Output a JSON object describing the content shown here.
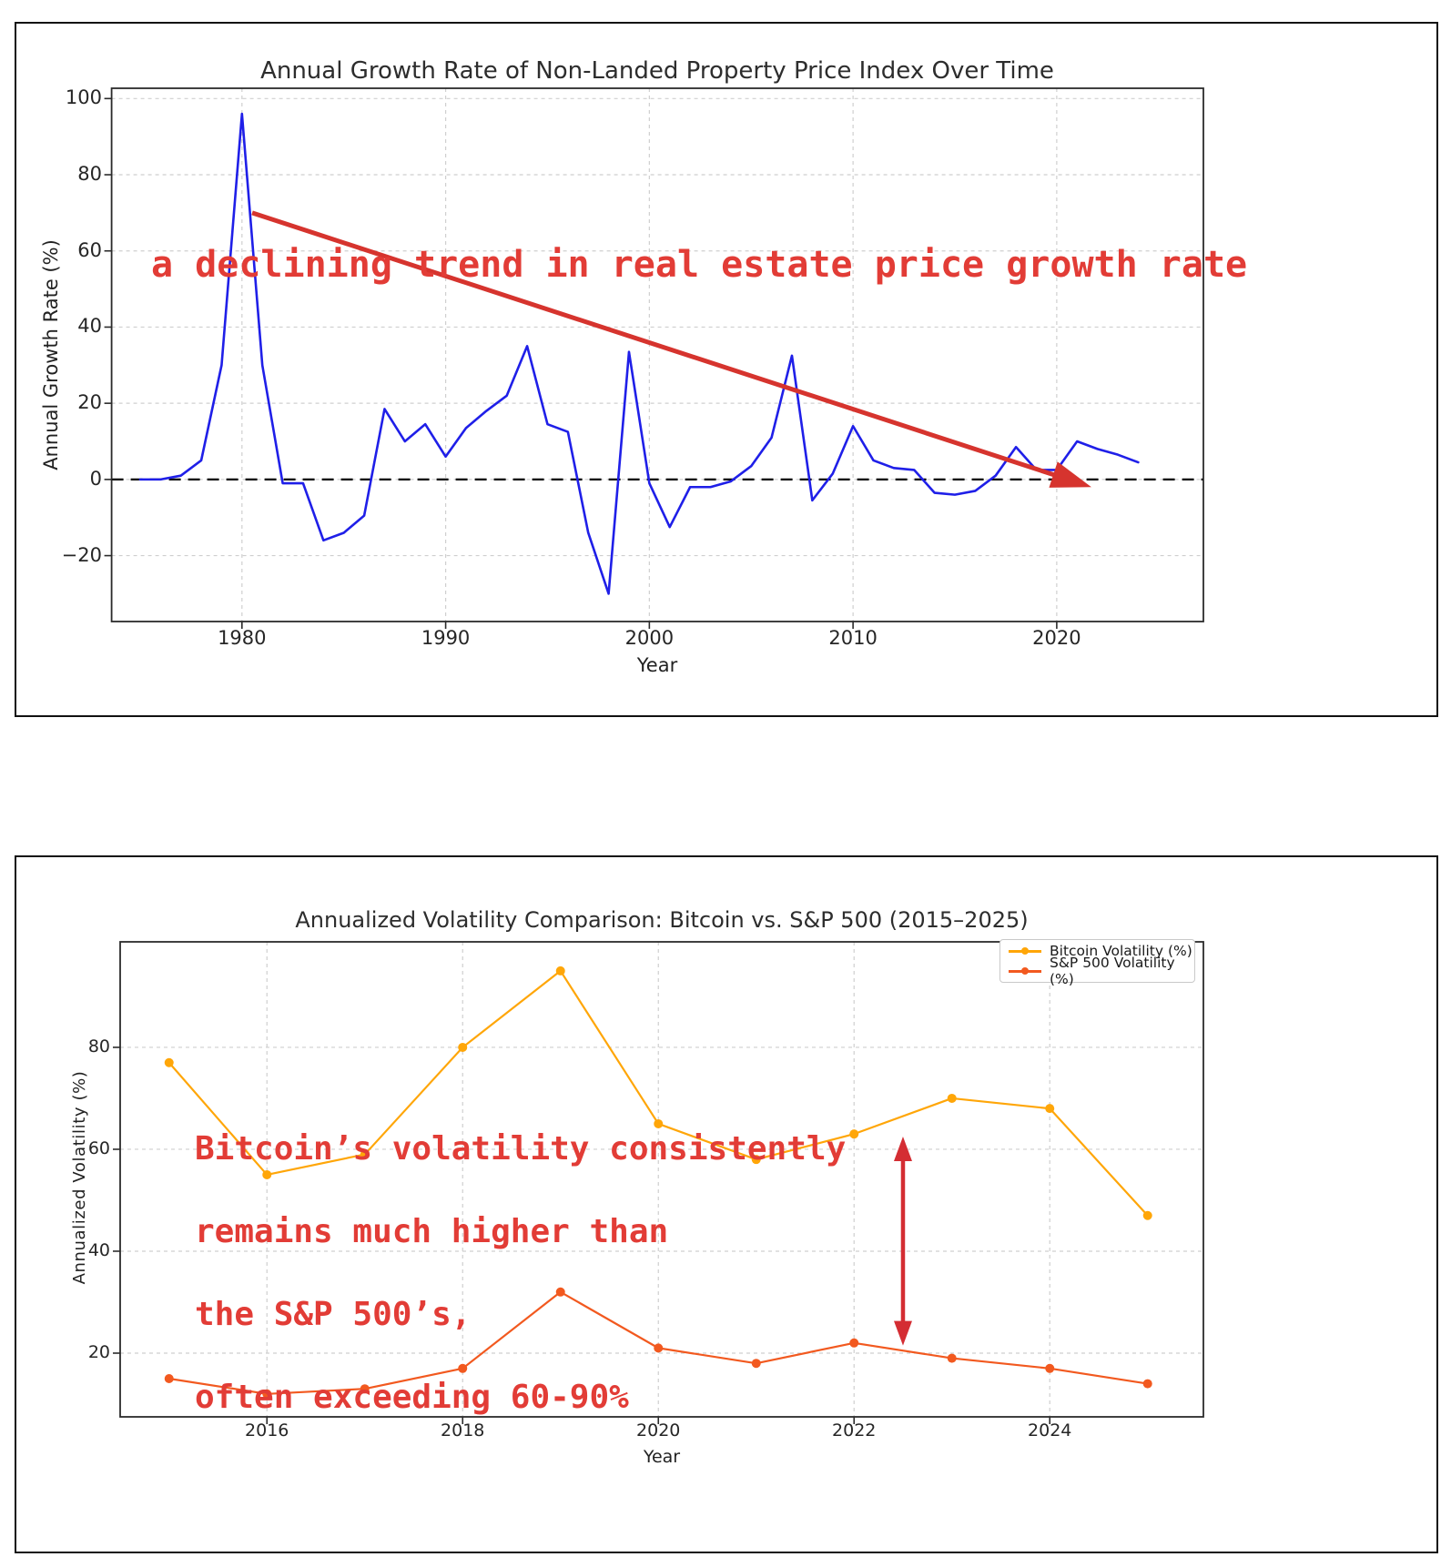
{
  "page": {
    "background": "#ffffff"
  },
  "chart_data": [
    {
      "type": "line",
      "title": "Annual Growth Rate of Non-Landed Property Price Index Over Time",
      "xlabel": "Year",
      "ylabel": "Annual Growth Rate (%)",
      "grid": true,
      "legend_position": "none",
      "x": [
        1975,
        1976,
        1977,
        1978,
        1979,
        1980,
        1981,
        1982,
        1983,
        1984,
        1985,
        1986,
        1987,
        1988,
        1989,
        1990,
        1991,
        1992,
        1993,
        1994,
        1995,
        1996,
        1997,
        1998,
        1999,
        2000,
        2001,
        2002,
        2003,
        2004,
        2005,
        2006,
        2007,
        2008,
        2009,
        2010,
        2011,
        2012,
        2013,
        2014,
        2015,
        2016,
        2017,
        2018,
        2019,
        2020,
        2021,
        2022,
        2023,
        2024
      ],
      "series": [
        {
          "name": "Annual Growth Rate (%)",
          "color": "#1f1fe8",
          "marker": false,
          "values": [
            0,
            0,
            1,
            5,
            30,
            96,
            30,
            -1,
            -1,
            -16,
            -14,
            -9.5,
            18.5,
            10,
            14.5,
            6,
            13.5,
            18,
            22,
            35,
            14.5,
            12.5,
            -14,
            -30,
            33.5,
            -1,
            -12.5,
            -2,
            -2,
            -0.5,
            3.5,
            11,
            32.5,
            -5.5,
            1.5,
            14,
            5,
            3,
            2.5,
            -3.5,
            -4,
            -3,
            1,
            8.5,
            2.5,
            2.5,
            10,
            8,
            6.5,
            4.5
          ]
        }
      ],
      "xticks": [
        1980,
        1990,
        2000,
        2010,
        2020
      ],
      "yticks": [
        -20,
        0,
        20,
        40,
        60,
        80,
        100
      ],
      "xlim": [
        1973.6,
        2027.2
      ],
      "ylim": [
        -37.3,
        102.7
      ],
      "zero_line": {
        "color": "#000000",
        "style": "dashed"
      },
      "annotation": {
        "text": "a declining trend in real estate price growth rate",
        "text_color": "#e23c36",
        "arrow": {
          "from": [
            1980.5,
            70
          ],
          "to": [
            2021.7,
            -2
          ],
          "double": false,
          "color": "#d6342e"
        }
      }
    },
    {
      "type": "line",
      "title": "Annualized Volatility Comparison: Bitcoin vs. S&P 500 (2015–2025)",
      "xlabel": "Year",
      "ylabel": "Annualized Volatility (%)",
      "grid": true,
      "legend_position": "upper right",
      "x": [
        2015,
        2016,
        2017,
        2018,
        2019,
        2020,
        2021,
        2022,
        2023,
        2024,
        2025
      ],
      "series": [
        {
          "name": "Bitcoin Volatility (%)",
          "color": "#ffa608",
          "marker": true,
          "values": [
            77,
            55,
            59,
            80,
            95,
            65,
            58,
            63,
            70,
            68,
            47
          ]
        },
        {
          "name": "S&P 500 Volatility (%)",
          "color": "#f2591f",
          "marker": true,
          "values": [
            15,
            12,
            13,
            17,
            32,
            21,
            18,
            22,
            19,
            17,
            14
          ]
        }
      ],
      "xticks": [
        2016,
        2018,
        2020,
        2022,
        2024
      ],
      "yticks": [
        20,
        40,
        60,
        80
      ],
      "xlim": [
        2014.5,
        2025.57
      ],
      "ylim": [
        7.5,
        100.7
      ],
      "zero_line": null,
      "annotation": {
        "lines": [
          "Bitcoin’s volatility consistently",
          "remains much higher than",
          "the S&P 500’s,",
          "often exceeding 60-90%"
        ],
        "text_color": "#e23c36",
        "arrow": {
          "from": [
            2022.5,
            21.5
          ],
          "to": [
            2022.5,
            62.5
          ],
          "double": true,
          "color": "#d42d33"
        }
      }
    }
  ]
}
